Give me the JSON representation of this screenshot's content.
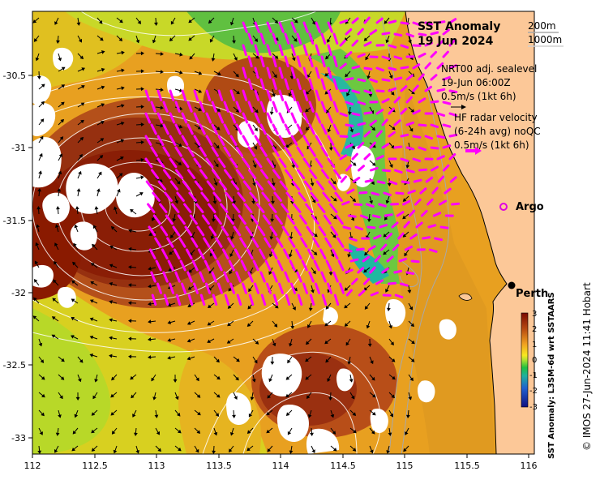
{
  "title": {
    "line1": "SST Anomaly",
    "line2": "19 Jun 2024"
  },
  "isobath_legend": [
    "200m",
    "1000m"
  ],
  "altimetry_legend": {
    "line1": "NRT00 adj. sealevel",
    "line2": "19-Jun 06:00Z",
    "line3": "0.5m/s (1kt 6h)"
  },
  "radar_legend": {
    "line1": "HF radar velocity",
    "line2": "(6-24h avg) noQC",
    "line3": "0.5m/s (1kt 6h)"
  },
  "places": {
    "argo": "Argo",
    "perth": "Perth"
  },
  "colorbar": {
    "label": "SST Anomaly: L3SM-6d wrt SSTAARS",
    "ticks": [
      "3",
      "2",
      "1",
      "0",
      "-1",
      "-2",
      "-3"
    ],
    "min": -3,
    "max": 3
  },
  "credit": "© IMOS 27-Jun-2024 11:41 Hobart",
  "axes": {
    "x_ticks": [
      "112",
      "112.5",
      "113",
      "113.5",
      "114",
      "114.5",
      "115",
      "115.5",
      "116"
    ],
    "y_ticks": [
      "-30.5",
      "-31",
      "-31.5",
      "-32",
      "-32.5",
      "-33"
    ],
    "lon_range": [
      112,
      116.1
    ],
    "lat_range": [
      -33.05,
      -30.1
    ]
  },
  "colors": {
    "land": "#fcc898",
    "radar_arrows": "#ff00ff",
    "argo_marker": "#e000e0",
    "warm": "#8b1a00",
    "cool": "#1aa0a0"
  }
}
